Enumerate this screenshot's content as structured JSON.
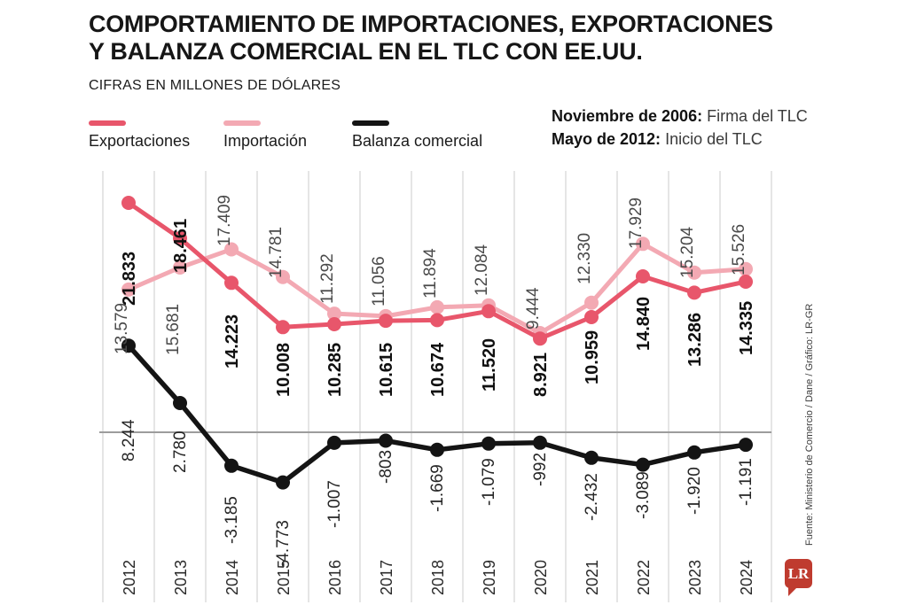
{
  "header": {
    "title_line1": "COMPORTAMIENTO DE IMPORTACIONES, EXPORTACIONES",
    "title_line2": "Y BALANZA COMERCIAL EN EL TLC CON EE.UU.",
    "subtitle": "CIFRAS EN MILLONES DE DÓLARES"
  },
  "legend": {
    "items": [
      {
        "label": "Exportaciones",
        "color": "#e8566b"
      },
      {
        "label": "Importación",
        "color": "#f3a9b3"
      },
      {
        "label": "Balanza comercial",
        "color": "#141414"
      }
    ]
  },
  "annotations": [
    {
      "bold": "Noviembre de 2006:",
      "rest": " Firma del TLC"
    },
    {
      "bold": "Mayo de 2012:",
      "rest": " Inicio del TLC"
    }
  ],
  "source": "Fuente: Ministerio de Comercio / Dane / Gráfico: LR-GR",
  "logo_text": "LR",
  "logo_color": "#bf3b2f",
  "chart_data": {
    "type": "line",
    "title": "Comportamiento de importaciones, exportaciones y balanza comercial en el TLC con EE.UU.",
    "unit": "millones de dólares",
    "categories": [
      "2012",
      "2013",
      "2014",
      "2015",
      "2016",
      "2017",
      "2018",
      "2019",
      "2020",
      "2021",
      "2022",
      "2023",
      "2024"
    ],
    "grid": "vertical-lines-between-categories",
    "zero_line": true,
    "legend_position": "top-left",
    "series": [
      {
        "name": "Exportaciones",
        "color": "#e8566b",
        "values": [
          21833,
          18461,
          14223,
          10008,
          10285,
          10615,
          10674,
          11520,
          8921,
          10959,
          14840,
          13286,
          14335
        ],
        "labels": [
          "21.833",
          "18.461",
          "14.223",
          "10.008",
          "10.285",
          "10.615",
          "10.674",
          "11.520",
          "8.921",
          "10.959",
          "14.840",
          "13.286",
          "14.335"
        ]
      },
      {
        "name": "Importación",
        "color": "#f3a9b3",
        "values": [
          13579,
          15681,
          17409,
          14781,
          11292,
          11056,
          11894,
          12084,
          9444,
          12330,
          17929,
          15204,
          15526
        ],
        "labels": [
          "13.579",
          "15.681",
          "17.409",
          "14.781",
          "11.292",
          "11.056",
          "11.894",
          "12.084",
          "9.444",
          "12.330",
          "17.929",
          "15.204",
          "15.526"
        ]
      },
      {
        "name": "Balanza comercial",
        "color": "#141414",
        "values": [
          8244,
          2780,
          -3185,
          -4773,
          -1007,
          -803,
          -1669,
          -1079,
          -992,
          -2432,
          -3089,
          -1920,
          -1191
        ],
        "labels": [
          "8.244",
          "2.780",
          "-3.185",
          "-4.773",
          "-1.007",
          "-803",
          "-1.669",
          "-1.079",
          "-992",
          "-2.432",
          "-3.089",
          "-1.920",
          "-1.191"
        ]
      }
    ]
  }
}
